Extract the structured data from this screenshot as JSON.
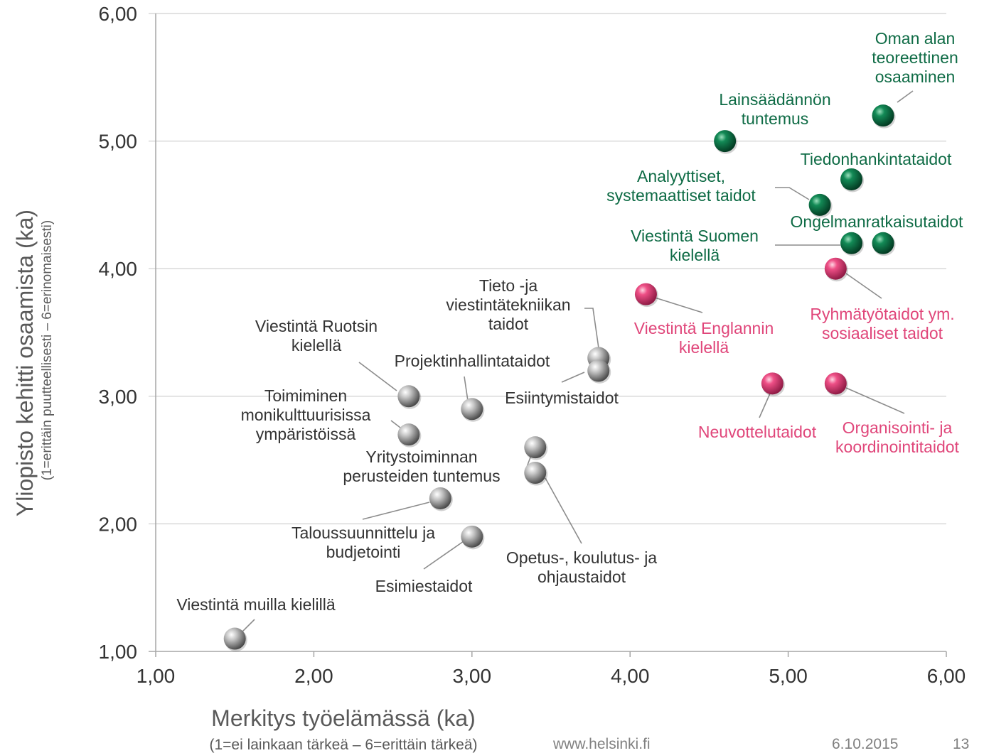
{
  "chart_data": {
    "type": "scatter",
    "xlabel": "Merkitys työelämässä (ka)",
    "xsublabel": "(1=ei lainkaan tärkeä – 6=erittäin tärkeä)",
    "ylabel": "Yliopisto kehitti osaamista (ka)",
    "ysublabel": "(1=erittäin puutteellisesti – 6=erinomaisesti)",
    "xlim": [
      1,
      6
    ],
    "ylim": [
      1,
      6
    ],
    "xticks": [
      "1,00",
      "2,00",
      "3,00",
      "4,00",
      "5,00",
      "6,00"
    ],
    "yticks": [
      "1,00",
      "2,00",
      "3,00",
      "4,00",
      "5,00",
      "6,00"
    ],
    "grid": "horizontal",
    "colors": {
      "gray": "#8c8c8c",
      "green": "#0e6b45",
      "pink": "#e0467a",
      "grid": "#d9d9d9",
      "axis": "#a6a6a6",
      "text": "#333333"
    },
    "points": [
      {
        "label": "Oman alan teoreettinen osaaminen",
        "lines": [
          "Oman alan",
          "teoreettinen",
          "osaaminen"
        ],
        "x": 5.6,
        "y": 5.2,
        "group": "green"
      },
      {
        "label": "Lainsäädännön tuntemus",
        "lines": [
          "Lainsäädännön",
          "tuntemus"
        ],
        "x": 4.6,
        "y": 5.0,
        "group": "green"
      },
      {
        "label": "Tiedonhankintataidot",
        "lines": [
          "Tiedonhankintataidot"
        ],
        "x": 5.4,
        "y": 4.7,
        "group": "green"
      },
      {
        "label": "Analyyttiset, systemaattiset taidot",
        "lines": [
          "Analyyttiset,",
          "systemaattiset taidot"
        ],
        "x": 5.2,
        "y": 4.5,
        "group": "green"
      },
      {
        "label": "Ongelmanratkaisutaidot",
        "lines": [
          "Ongelmanratkaisutaidot"
        ],
        "x": 5.6,
        "y": 4.2,
        "group": "green"
      },
      {
        "label": "Viestintä Suomen kielellä",
        "lines": [
          "Viestintä Suomen",
          "kielellä"
        ],
        "x": 5.4,
        "y": 4.2,
        "group": "green"
      },
      {
        "label": "Ryhmätyötaidot ym. sosiaaliset taidot",
        "lines": [
          "Ryhmätyötaidot ym.",
          "sosiaaliset taidot"
        ],
        "x": 5.3,
        "y": 4.0,
        "group": "pink"
      },
      {
        "label": "Viestintä Englannin kielellä",
        "lines": [
          "Viestintä Englannin",
          "kielellä"
        ],
        "x": 4.1,
        "y": 3.8,
        "group": "pink"
      },
      {
        "label": "Neuvottelutaidot",
        "lines": [
          "Neuvottelutaidot"
        ],
        "x": 4.9,
        "y": 3.1,
        "group": "pink"
      },
      {
        "label": "Organisointi- ja koordinointitaidot",
        "lines": [
          "Organisointi- ja",
          "koordinointitaidot"
        ],
        "x": 5.3,
        "y": 3.1,
        "group": "pink"
      },
      {
        "label": "Tieto -ja viestintätekniikan taidot",
        "lines": [
          "Tieto -ja",
          "viestintätekniikan",
          "taidot"
        ],
        "x": 3.8,
        "y": 3.3,
        "group": "gray"
      },
      {
        "label": "Esiintymistaidot",
        "lines": [
          "Esiintymistaidot"
        ],
        "x": 3.8,
        "y": 3.2,
        "group": "gray"
      },
      {
        "label": "Viestintä Ruotsin kielellä",
        "lines": [
          "Viestintä Ruotsin",
          "kielellä"
        ],
        "x": 2.6,
        "y": 3.0,
        "group": "gray"
      },
      {
        "label": "Projektinhallintataidot",
        "lines": [
          "Projektinhallintataidot"
        ],
        "x": 3.0,
        "y": 2.9,
        "group": "gray"
      },
      {
        "label": "Toimiminen monikulttuurisissa ympäristöissä",
        "lines": [
          "Toimiminen",
          "monikulttuurisissa",
          "ympäristöissä"
        ],
        "x": 2.6,
        "y": 2.7,
        "group": "gray"
      },
      {
        "label": "Yritystoiminnan perusteiden tuntemus",
        "lines": [
          "Yritystoiminnan",
          "perusteiden tuntemus"
        ],
        "x": 3.4,
        "y": 2.6,
        "group": "gray"
      },
      {
        "label": "Opetus-, koulutus- ja ohjaustaidot",
        "lines": [
          "Opetus-, koulutus- ja",
          "ohjaustaidot"
        ],
        "x": 3.4,
        "y": 2.4,
        "group": "gray"
      },
      {
        "label": "Taloussuunnittelu ja budjetointi",
        "lines": [
          "Taloussuunnittelu ja",
          "budjetointi"
        ],
        "x": 2.8,
        "y": 2.2,
        "group": "gray"
      },
      {
        "label": "Esimiestaidot",
        "lines": [
          "Esimiestaidot"
        ],
        "x": 3.0,
        "y": 1.9,
        "group": "gray"
      },
      {
        "label": "Viestintä muilla kielillä",
        "lines": [
          "Viestintä muilla kielillä"
        ],
        "x": 1.5,
        "y": 1.1,
        "group": "gray"
      }
    ]
  },
  "footer": {
    "url": "www.helsinki.fi",
    "date": "6.10.2015",
    "page": "13"
  }
}
